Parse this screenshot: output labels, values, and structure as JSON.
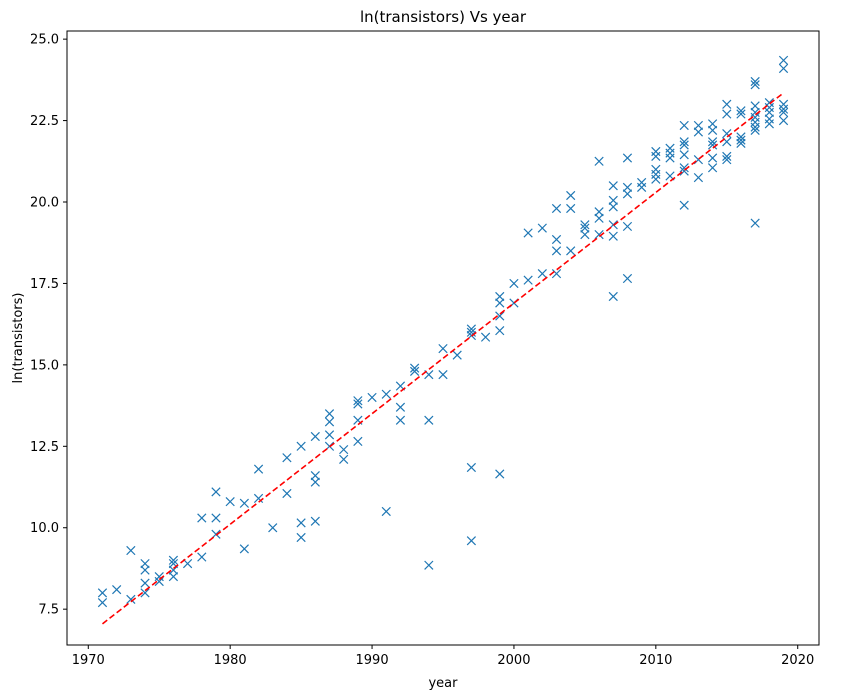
{
  "chart_data": {
    "type": "scatter",
    "title": "ln(transistors) Vs year",
    "xlabel": "year",
    "ylabel": "ln(transistors)",
    "xlim": [
      1968.5,
      2021.5
    ],
    "ylim": [
      6.4,
      25.25
    ],
    "xticks": [
      "1970",
      "1980",
      "1990",
      "2000",
      "2010",
      "2020"
    ],
    "yticks": [
      "7.5",
      "10.0",
      "12.5",
      "15.0",
      "17.5",
      "20.0",
      "22.5",
      "25.0"
    ],
    "grid": false,
    "marker_color": "#1f77b4",
    "fit_color": "#ff0000",
    "series": [
      {
        "marker": "x",
        "points": [
          [
            1971,
            8.0
          ],
          [
            1971,
            7.7
          ],
          [
            1972,
            8.1
          ],
          [
            1973,
            9.3
          ],
          [
            1973,
            7.8
          ],
          [
            1974,
            8.9
          ],
          [
            1974,
            8.7
          ],
          [
            1974,
            8.3
          ],
          [
            1974,
            8.0
          ],
          [
            1975,
            8.5
          ],
          [
            1975,
            8.35
          ],
          [
            1976,
            9.0
          ],
          [
            1976,
            8.9
          ],
          [
            1976,
            8.7
          ],
          [
            1976,
            8.5
          ],
          [
            1977,
            8.9
          ],
          [
            1978,
            10.3
          ],
          [
            1978,
            9.1
          ],
          [
            1979,
            11.1
          ],
          [
            1979,
            10.3
          ],
          [
            1979,
            9.8
          ],
          [
            1980,
            10.8
          ],
          [
            1981,
            10.75
          ],
          [
            1981,
            9.35
          ],
          [
            1982,
            11.8
          ],
          [
            1982,
            10.9
          ],
          [
            1983,
            10.0
          ],
          [
            1984,
            12.15
          ],
          [
            1984,
            11.05
          ],
          [
            1985,
            12.5
          ],
          [
            1985,
            10.15
          ],
          [
            1985,
            9.7
          ],
          [
            1986,
            12.8
          ],
          [
            1986,
            11.6
          ],
          [
            1986,
            11.4
          ],
          [
            1986,
            10.2
          ],
          [
            1987,
            13.5
          ],
          [
            1987,
            13.25
          ],
          [
            1987,
            12.85
          ],
          [
            1987,
            12.5
          ],
          [
            1988,
            12.4
          ],
          [
            1988,
            12.1
          ],
          [
            1989,
            13.9
          ],
          [
            1989,
            13.8
          ],
          [
            1989,
            13.3
          ],
          [
            1989,
            12.65
          ],
          [
            1990,
            14.0
          ],
          [
            1991,
            14.1
          ],
          [
            1991,
            10.5
          ],
          [
            1992,
            14.35
          ],
          [
            1992,
            13.7
          ],
          [
            1992,
            13.3
          ],
          [
            1993,
            14.9
          ],
          [
            1993,
            14.8
          ],
          [
            1994,
            14.7
          ],
          [
            1994,
            13.3
          ],
          [
            1994,
            8.85
          ],
          [
            1995,
            15.5
          ],
          [
            1995,
            14.7
          ],
          [
            1996,
            15.3
          ],
          [
            1997,
            16.1
          ],
          [
            1997,
            16.0
          ],
          [
            1997,
            15.9
          ],
          [
            1997,
            11.85
          ],
          [
            1997,
            9.6
          ],
          [
            1998,
            15.85
          ],
          [
            1999,
            17.1
          ],
          [
            1999,
            16.9
          ],
          [
            1999,
            16.5
          ],
          [
            1999,
            16.05
          ],
          [
            1999,
            11.65
          ],
          [
            2000,
            17.5
          ],
          [
            2000,
            16.9
          ],
          [
            2001,
            19.05
          ],
          [
            2001,
            17.6
          ],
          [
            2002,
            19.2
          ],
          [
            2002,
            17.8
          ],
          [
            2003,
            19.8
          ],
          [
            2003,
            18.85
          ],
          [
            2003,
            18.5
          ],
          [
            2003,
            17.8
          ],
          [
            2004,
            20.2
          ],
          [
            2004,
            19.8
          ],
          [
            2004,
            18.5
          ],
          [
            2005,
            19.3
          ],
          [
            2005,
            19.2
          ],
          [
            2005,
            19.0
          ],
          [
            2006,
            21.25
          ],
          [
            2006,
            19.7
          ],
          [
            2006,
            19.5
          ],
          [
            2006,
            19.0
          ],
          [
            2007,
            20.5
          ],
          [
            2007,
            20.05
          ],
          [
            2007,
            19.85
          ],
          [
            2007,
            19.3
          ],
          [
            2007,
            18.95
          ],
          [
            2007,
            17.1
          ],
          [
            2008,
            21.35
          ],
          [
            2008,
            20.45
          ],
          [
            2008,
            20.25
          ],
          [
            2008,
            19.25
          ],
          [
            2008,
            17.65
          ],
          [
            2009,
            20.6
          ],
          [
            2009,
            20.45
          ],
          [
            2010,
            21.55
          ],
          [
            2010,
            21.4
          ],
          [
            2010,
            21.0
          ],
          [
            2010,
            20.85
          ],
          [
            2010,
            20.7
          ],
          [
            2011,
            21.65
          ],
          [
            2011,
            21.5
          ],
          [
            2011,
            21.35
          ],
          [
            2011,
            20.8
          ],
          [
            2012,
            22.35
          ],
          [
            2012,
            21.85
          ],
          [
            2012,
            21.75
          ],
          [
            2012,
            21.45
          ],
          [
            2012,
            21.05
          ],
          [
            2012,
            20.95
          ],
          [
            2012,
            19.9
          ],
          [
            2013,
            22.35
          ],
          [
            2013,
            22.15
          ],
          [
            2013,
            21.3
          ],
          [
            2013,
            20.75
          ],
          [
            2014,
            22.4
          ],
          [
            2014,
            22.2
          ],
          [
            2014,
            21.85
          ],
          [
            2014,
            21.75
          ],
          [
            2014,
            21.35
          ],
          [
            2014,
            21.05
          ],
          [
            2015,
            23.0
          ],
          [
            2015,
            22.7
          ],
          [
            2015,
            22.1
          ],
          [
            2015,
            21.85
          ],
          [
            2015,
            21.4
          ],
          [
            2015,
            21.3
          ],
          [
            2016,
            22.8
          ],
          [
            2016,
            22.7
          ],
          [
            2016,
            22.0
          ],
          [
            2016,
            21.9
          ],
          [
            2016,
            21.8
          ],
          [
            2017,
            23.7
          ],
          [
            2017,
            23.6
          ],
          [
            2017,
            22.95
          ],
          [
            2017,
            22.75
          ],
          [
            2017,
            22.6
          ],
          [
            2017,
            22.45
          ],
          [
            2017,
            22.3
          ],
          [
            2017,
            22.2
          ],
          [
            2017,
            19.35
          ],
          [
            2018,
            23.05
          ],
          [
            2018,
            22.9
          ],
          [
            2018,
            22.75
          ],
          [
            2018,
            22.55
          ],
          [
            2018,
            22.4
          ],
          [
            2019,
            24.35
          ],
          [
            2019,
            24.1
          ],
          [
            2019,
            23.0
          ],
          [
            2019,
            22.85
          ],
          [
            2019,
            22.75
          ],
          [
            2019,
            22.5
          ]
        ]
      },
      {
        "marker": "dashed-line",
        "points": [
          [
            1971,
            7.05
          ],
          [
            2019,
            23.35
          ]
        ]
      }
    ]
  }
}
